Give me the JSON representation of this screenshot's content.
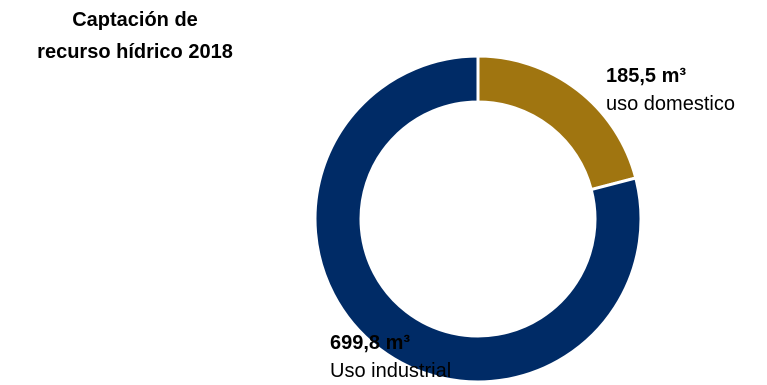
{
  "chart_data": {
    "type": "pie",
    "title_lines": [
      "Captación de",
      "recurso hídrico 2018"
    ],
    "slices": [
      {
        "label": "uso domestico",
        "value": 185.5,
        "value_text": "185,5 m³",
        "color": "#A07510"
      },
      {
        "label": "Uso industrial",
        "value": 699.8,
        "value_text": "699,8 m³",
        "color": "#002B66"
      }
    ],
    "legend": "none"
  }
}
